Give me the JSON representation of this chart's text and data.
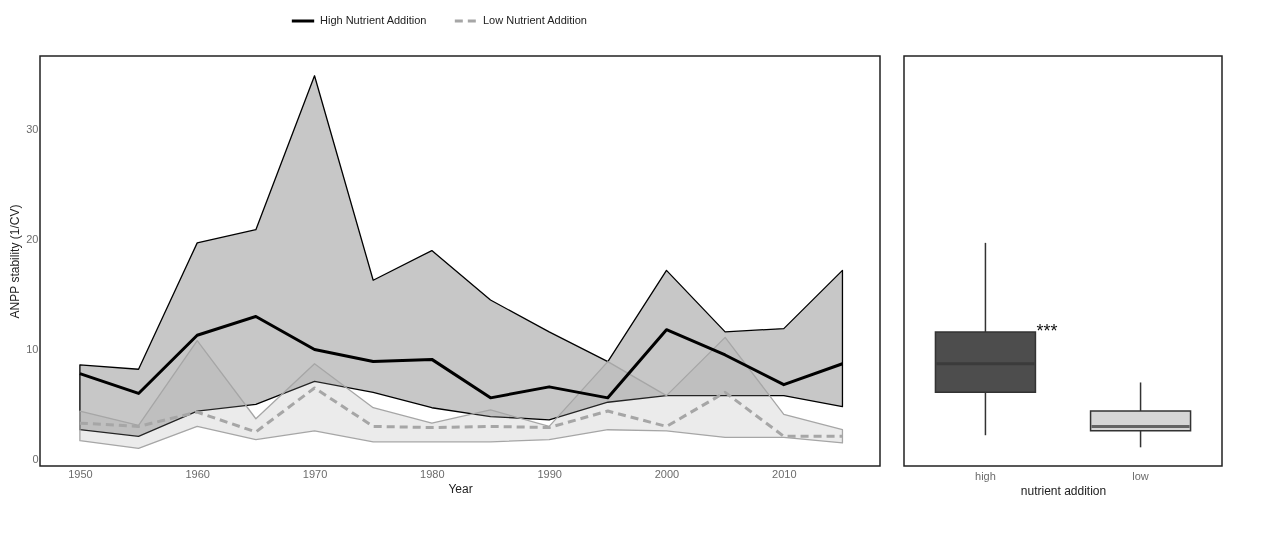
{
  "chart_data": [
    {
      "type": "line",
      "xlabel": "Year",
      "ylabel": "ANPP stability (1/CV)",
      "legend": "top",
      "x": [
        1950,
        1955,
        1960,
        1965,
        1970,
        1975,
        1980,
        1985,
        1990,
        1995,
        2000,
        2005,
        2010,
        2015
      ],
      "xlim": [
        1946.6,
        2018.2
      ],
      "xticks": [
        1950,
        1960,
        1970,
        1980,
        1990,
        2000,
        2010
      ],
      "ylim": [
        -0.6,
        36.7
      ],
      "yticks": [
        0,
        10,
        20,
        30
      ],
      "series": [
        {
          "name": "High Nutrient Addition",
          "color": "#000000",
          "line_style": "solid",
          "values": [
            7.8,
            6.0,
            11.3,
            13.0,
            10.0,
            8.9,
            9.1,
            5.6,
            6.6,
            5.6,
            11.8,
            9.5,
            6.8,
            8.7
          ],
          "lower": [
            2.7,
            2.1,
            4.4,
            5.0,
            7.1,
            6.1,
            4.7,
            3.9,
            3.6,
            5.2,
            5.8,
            5.8,
            5.8,
            4.8
          ],
          "upper": [
            8.6,
            8.2,
            19.7,
            20.9,
            34.9,
            16.3,
            19.0,
            14.5,
            11.6,
            8.9,
            17.2,
            11.6,
            11.9,
            17.2
          ]
        },
        {
          "name": "Low Nutrient Addition",
          "color": "#a6a6a6",
          "line_style": "dashed",
          "values": [
            3.3,
            3.0,
            4.3,
            2.5,
            6.5,
            3.0,
            2.9,
            3.0,
            2.9,
            4.4,
            3.0,
            6.1,
            2.1,
            2.1
          ],
          "lower": [
            1.7,
            1.0,
            3.0,
            1.8,
            2.6,
            1.6,
            1.6,
            1.6,
            1.8,
            2.7,
            2.6,
            2.0,
            2.0,
            1.5
          ],
          "upper": [
            4.4,
            3.1,
            10.8,
            3.7,
            8.7,
            4.7,
            3.3,
            4.5,
            3.0,
            8.9,
            5.8,
            11.1,
            4.1,
            2.7
          ]
        }
      ]
    },
    {
      "type": "box",
      "xlabel": "nutrient addition",
      "categories": [
        "high",
        "low"
      ],
      "ylim": [
        -0.6,
        36.7
      ],
      "yticks": [
        0,
        10,
        20,
        30
      ],
      "tick_labels": "x",
      "colors": [
        "#4d4d4d",
        "#d6d6d6"
      ],
      "boxes": [
        {
          "low": 2.2,
          "q1": 6.1,
          "median": 8.7,
          "q3": 11.6,
          "high": 19.7
        },
        {
          "low": 1.1,
          "q1": 2.6,
          "median": 3.0,
          "q3": 4.4,
          "high": 7.0
        }
      ],
      "annotations": [
        {
          "text": "***",
          "x": "high",
          "y": 11.6
        }
      ]
    }
  ]
}
